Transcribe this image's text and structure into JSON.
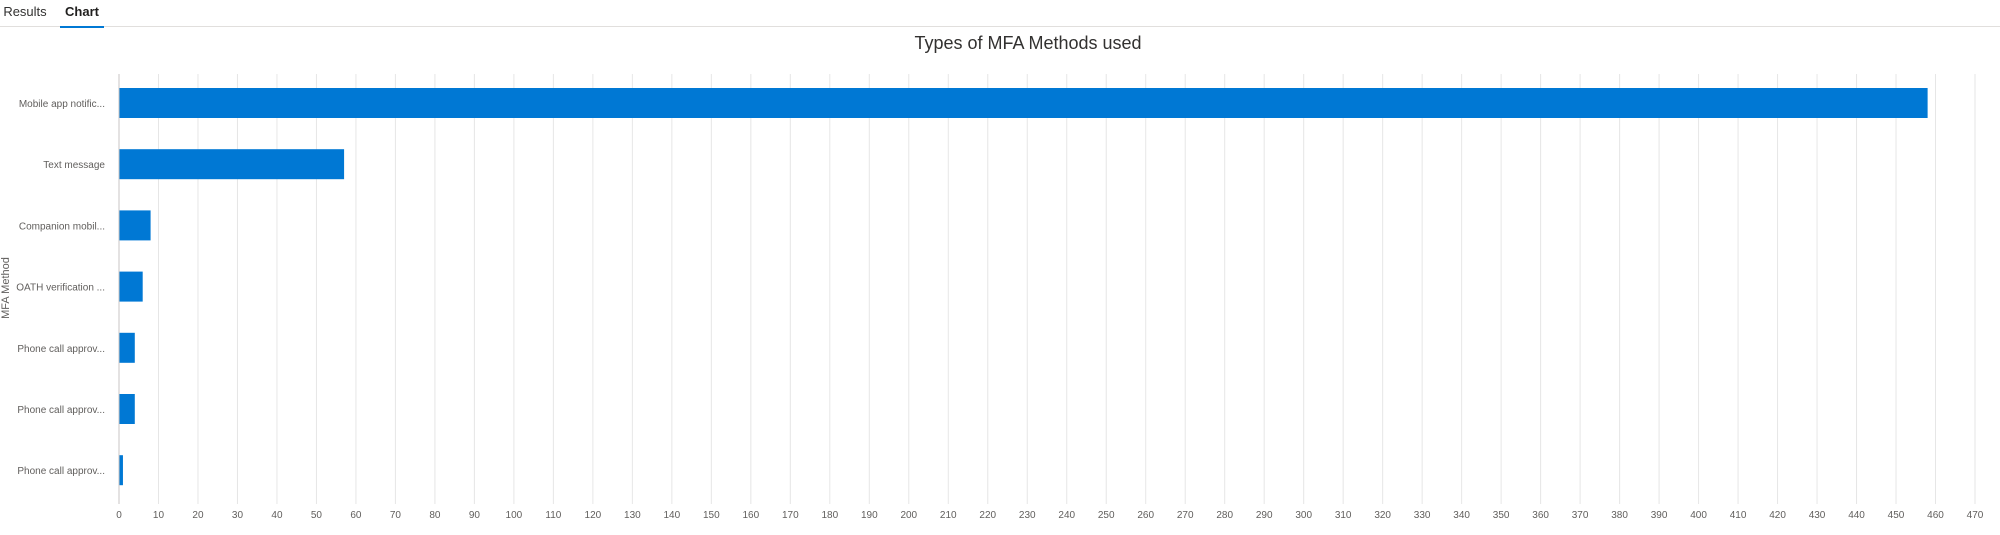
{
  "tabs": [
    {
      "label": "Results",
      "active": false
    },
    {
      "label": "Chart",
      "active": true
    }
  ],
  "colors": {
    "accent": "#0078d4",
    "bar": "#0078d4",
    "grid": "#e6e6e6",
    "text": "#323130",
    "tick": "#605e5c"
  },
  "chart_data": {
    "type": "bar",
    "orientation": "horizontal",
    "title": "Types of MFA Methods used",
    "ylabel": "MFA Method",
    "xlabel": "",
    "xlim": [
      0,
      470
    ],
    "xtick_step": 10,
    "grid": true,
    "categories": [
      "Mobile app notific...",
      "Text message",
      "Companion mobil...",
      "OATH verification ...",
      "Phone call approv...",
      "Phone call approv...",
      "Phone call approv..."
    ],
    "values": [
      458,
      57,
      8,
      6,
      4,
      4,
      1
    ]
  }
}
